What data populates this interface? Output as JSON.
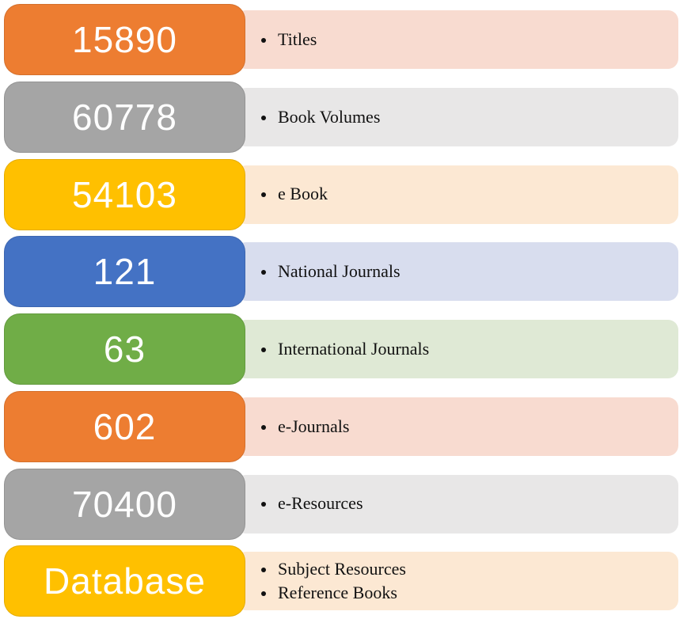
{
  "rows": [
    {
      "value": "15890",
      "labels": [
        "Titles"
      ],
      "block_color": "#ED7D31",
      "bar_color": "#F8DBD0"
    },
    {
      "value": "60778",
      "labels": [
        "Book Volumes"
      ],
      "block_color": "#A5A5A5",
      "bar_color": "#E8E7E7"
    },
    {
      "value": "54103",
      "labels": [
        "e Book"
      ],
      "block_color": "#FFC000",
      "bar_color": "#FCE8D3"
    },
    {
      "value": "121",
      "labels": [
        "National Journals"
      ],
      "block_color": "#4472C4",
      "bar_color": "#D8DDEE"
    },
    {
      "value": "63",
      "labels": [
        "International Journals"
      ],
      "block_color": "#70AD47",
      "bar_color": "#DFE9D5"
    },
    {
      "value": "602",
      "labels": [
        "e-Journals"
      ],
      "block_color": "#ED7D31",
      "bar_color": "#F8DBD0"
    },
    {
      "value": "70400",
      "labels": [
        "e-Resources"
      ],
      "block_color": "#A5A5A5",
      "bar_color": "#E8E7E7"
    },
    {
      "value": "Database",
      "labels": [
        "Subject Resources",
        "Reference Books"
      ],
      "block_color": "#FFC000",
      "bar_color": "#FCE8D3"
    }
  ],
  "layout_meta": {
    "row_count": 8
  }
}
